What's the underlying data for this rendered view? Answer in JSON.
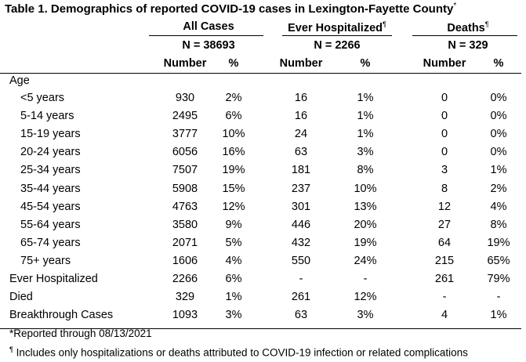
{
  "title": "Table 1. Demographics of reported COVID-19 cases in Lexington-Fayette County",
  "title_mark": "*",
  "groups": [
    {
      "label": "All Cases",
      "mark": "",
      "n": "N = 38693"
    },
    {
      "label": "Ever Hospitalized",
      "mark": "¶",
      "n": "N = 2266"
    },
    {
      "label": "Deaths",
      "mark": "¶",
      "n": "N = 329"
    }
  ],
  "subheaders": {
    "number": "Number",
    "pct": "%"
  },
  "age_header": "Age",
  "rows": [
    {
      "label": "<5 years",
      "indent": true,
      "vals": [
        "930",
        "2%",
        "16",
        "1%",
        "0",
        "0%"
      ]
    },
    {
      "label": "5-14 years",
      "indent": true,
      "vals": [
        "2495",
        "6%",
        "16",
        "1%",
        "0",
        "0%"
      ]
    },
    {
      "label": "15-19 years",
      "indent": true,
      "vals": [
        "3777",
        "10%",
        "24",
        "1%",
        "0",
        "0%"
      ]
    },
    {
      "label": "20-24 years",
      "indent": true,
      "vals": [
        "6056",
        "16%",
        "63",
        "3%",
        "0",
        "0%"
      ]
    },
    {
      "label": "25-34 years",
      "indent": true,
      "vals": [
        "7507",
        "19%",
        "181",
        "8%",
        "3",
        "1%"
      ]
    },
    {
      "label": "35-44 years",
      "indent": true,
      "vals": [
        "5908",
        "15%",
        "237",
        "10%",
        "8",
        "2%"
      ]
    },
    {
      "label": "45-54 years",
      "indent": true,
      "vals": [
        "4763",
        "12%",
        "301",
        "13%",
        "12",
        "4%"
      ]
    },
    {
      "label": "55-64 years",
      "indent": true,
      "vals": [
        "3580",
        "9%",
        "446",
        "20%",
        "27",
        "8%"
      ]
    },
    {
      "label": "65-74 years",
      "indent": true,
      "vals": [
        "2071",
        "5%",
        "432",
        "19%",
        "64",
        "19%"
      ]
    },
    {
      "label": "75+ years",
      "indent": true,
      "vals": [
        "1606",
        "4%",
        "550",
        "24%",
        "215",
        "65%"
      ]
    },
    {
      "label": "Ever Hospitalized",
      "indent": false,
      "vals": [
        "2266",
        "6%",
        "-",
        "-",
        "261",
        "79%"
      ]
    },
    {
      "label": "Died",
      "indent": false,
      "vals": [
        "329",
        "1%",
        "261",
        "12%",
        "-",
        "-"
      ]
    },
    {
      "label": "Breakthrough Cases",
      "indent": false,
      "vals": [
        "1093",
        "3%",
        "63",
        "3%",
        "4",
        "1%"
      ]
    }
  ],
  "footnotes": {
    "reported": "*Reported through 08/13/2021",
    "mark": "¶",
    "includes": " Includes only hospitalizations or deaths attributed to COVID-19 infection or related complications"
  }
}
